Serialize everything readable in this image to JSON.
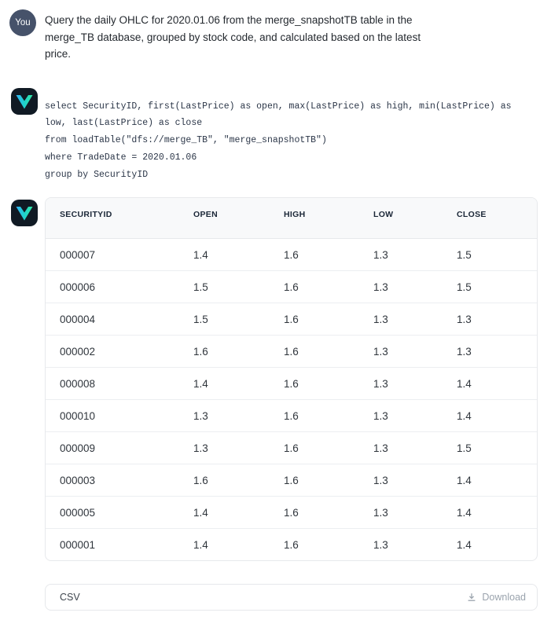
{
  "user_message": {
    "avatar_label": "You",
    "lines": [
      "Query the daily OHLC for 2020.01.06 from the merge_snapshotTB table in the",
      "merge_TB database, grouped by stock code, and calculated based on the latest",
      "price."
    ]
  },
  "assistant_code": {
    "lines": [
      "select SecurityID, first(LastPrice) as open, max(LastPrice) as high, min(LastPrice) as",
      "low, last(LastPrice) as close",
      "from loadTable(\"dfs://merge_TB\", \"merge_snapshotTB\")",
      "where TradeDate = 2020.01.06",
      "group by SecurityID"
    ]
  },
  "result_table": {
    "columns": [
      "SECURITYID",
      "OPEN",
      "HIGH",
      "LOW",
      "CLOSE"
    ],
    "rows": [
      [
        "000007",
        "1.4",
        "1.6",
        "1.3",
        "1.5"
      ],
      [
        "000006",
        "1.5",
        "1.6",
        "1.3",
        "1.5"
      ],
      [
        "000004",
        "1.5",
        "1.6",
        "1.3",
        "1.3"
      ],
      [
        "000002",
        "1.6",
        "1.6",
        "1.3",
        "1.3"
      ],
      [
        "000008",
        "1.4",
        "1.6",
        "1.3",
        "1.4"
      ],
      [
        "000010",
        "1.3",
        "1.6",
        "1.3",
        "1.4"
      ],
      [
        "000009",
        "1.3",
        "1.6",
        "1.3",
        "1.5"
      ],
      [
        "000003",
        "1.6",
        "1.6",
        "1.3",
        "1.4"
      ],
      [
        "000005",
        "1.4",
        "1.6",
        "1.3",
        "1.4"
      ],
      [
        "000001",
        "1.4",
        "1.6",
        "1.3",
        "1.4"
      ]
    ]
  },
  "export_bar": {
    "format_label": "CSV",
    "download_label": "Download"
  },
  "icons": {
    "assistant_logo": "v-chevron-icon",
    "download": "download-icon"
  },
  "colors": {
    "user_avatar_bg": "#46526a",
    "assistant_avatar_bg": "#101a24",
    "logo_gradient_start": "#31b4f8",
    "logo_gradient_end": "#32e8a4",
    "table_header_bg": "#f8f9fa",
    "muted_text": "#9aa3ad"
  }
}
